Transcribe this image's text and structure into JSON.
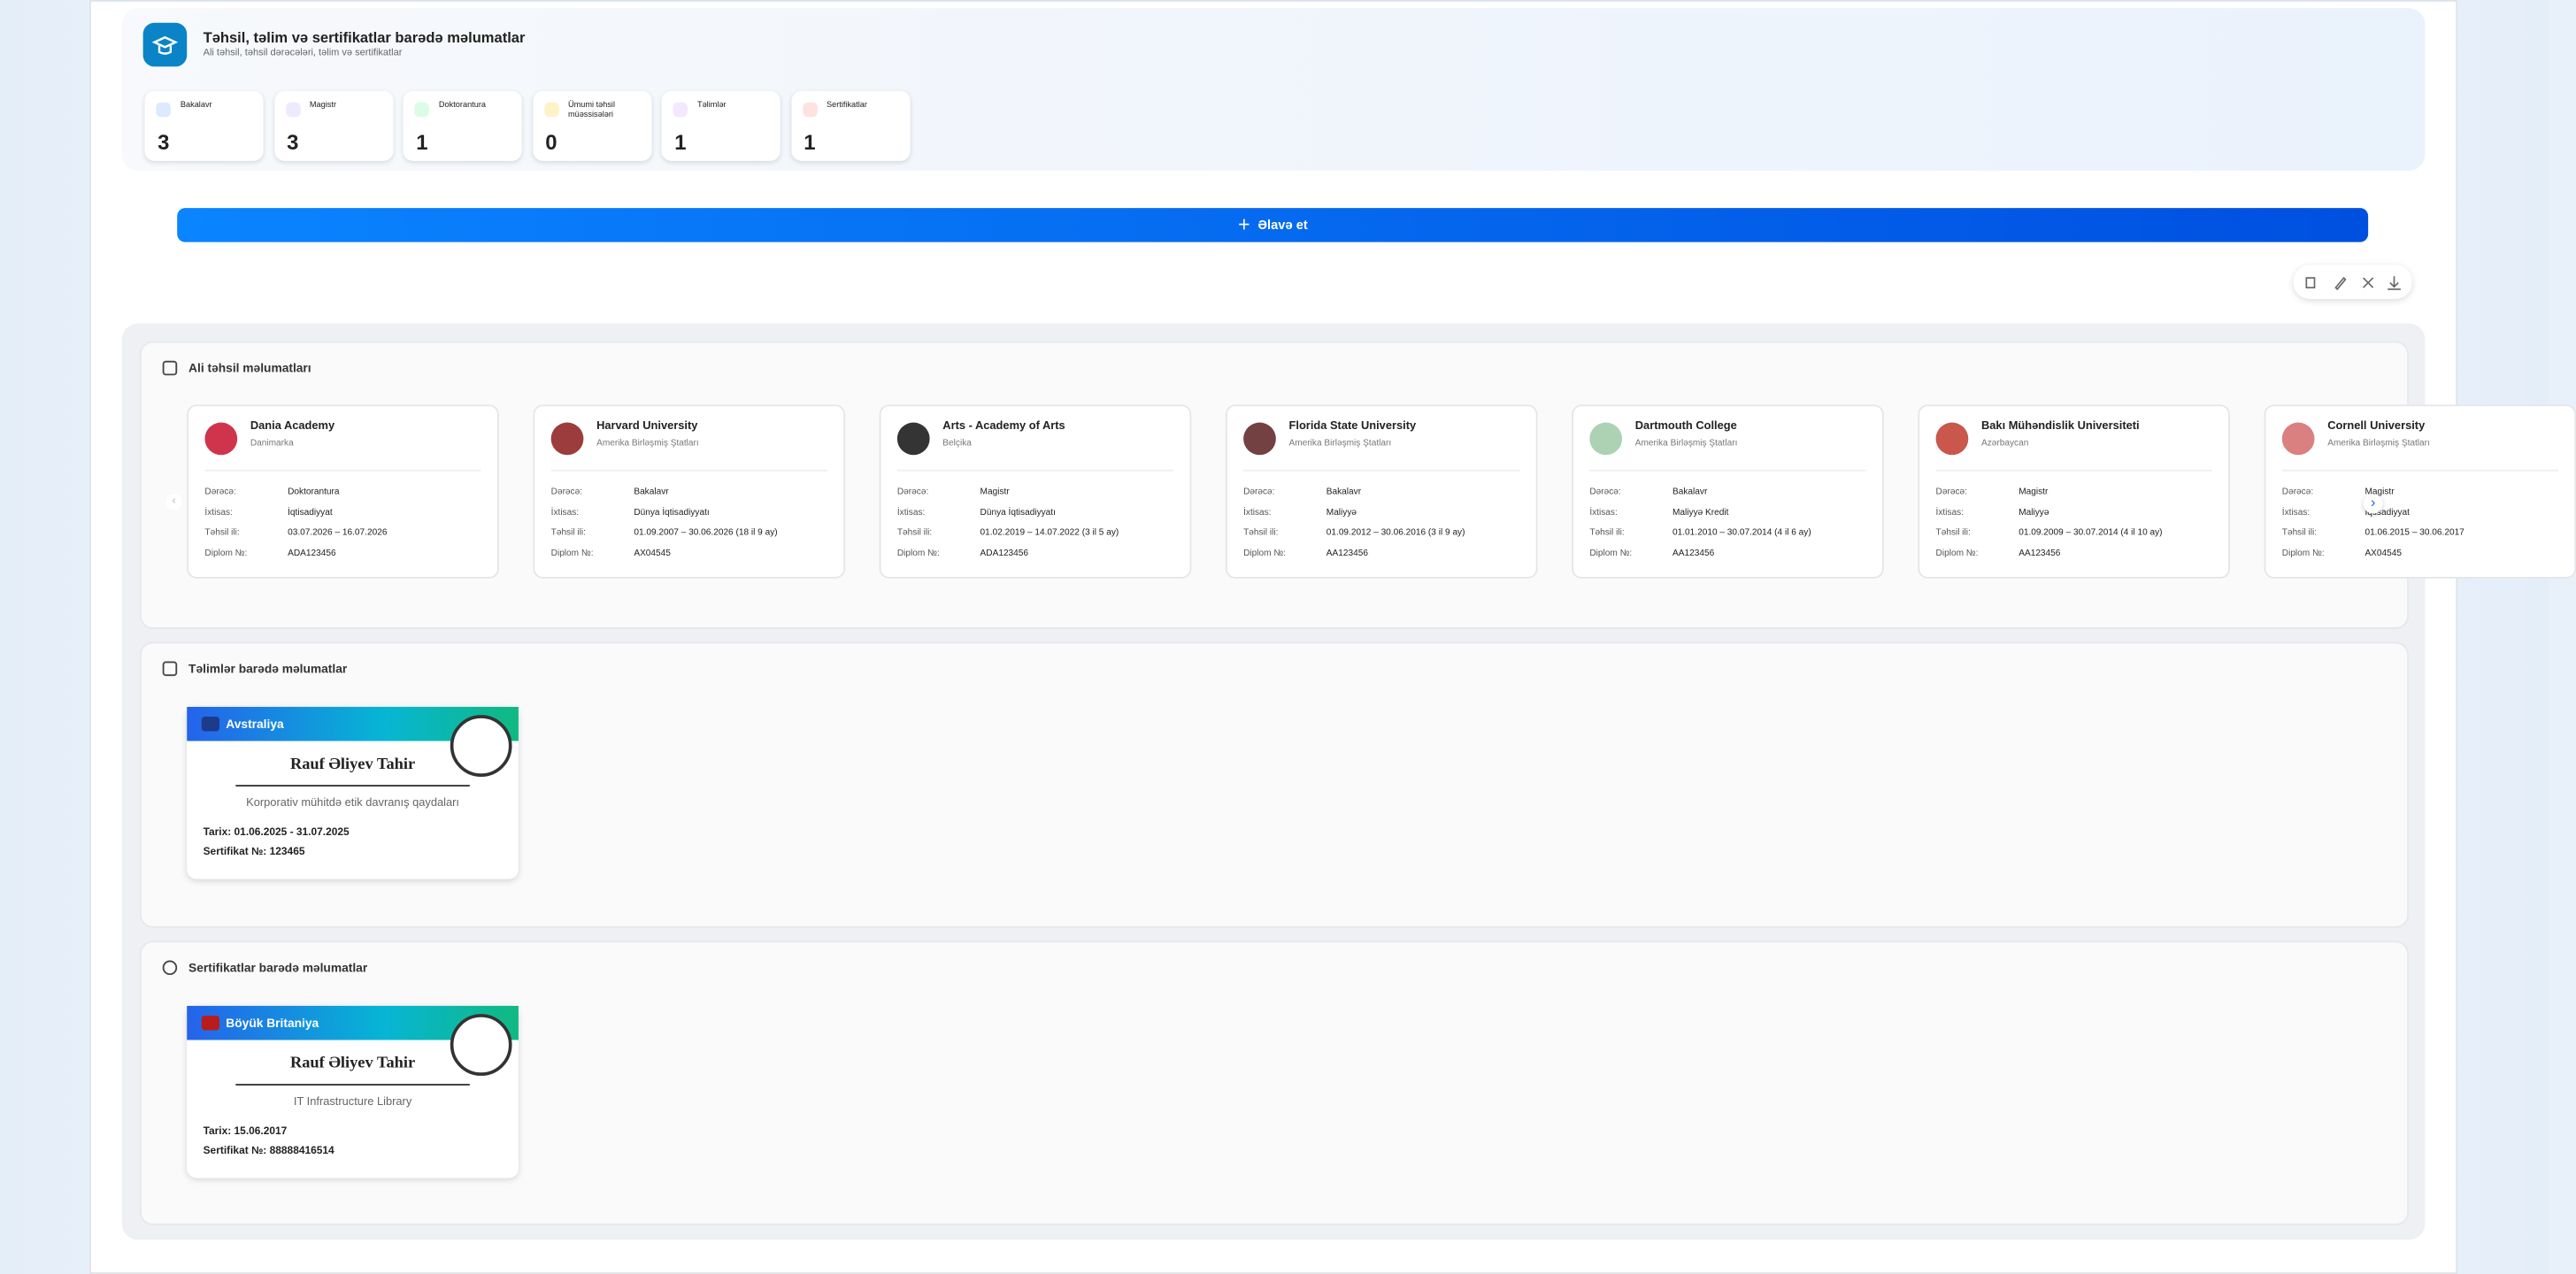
{
  "header": {
    "title": "Təhsil, təlim və sertifikatlar barədə məlumatlar",
    "subtitle": "Ali təhsil, təhsil dərəcələri, təlim və sertifikatlar"
  },
  "stats": [
    {
      "label": "Bakalavr",
      "value": 3
    },
    {
      "label": "Magistr",
      "value": 3
    },
    {
      "label": "Doktorantura",
      "value": 1
    },
    {
      "label": "Ümumi təhsil müəssisələri",
      "value": 0
    },
    {
      "label": "Təlimlər",
      "value": 1
    },
    {
      "label": "Sertifikatlar",
      "value": 1
    }
  ],
  "add_button": "Əlavə et",
  "education": {
    "title": "Ali təhsil məlumatları",
    "field_labels": [
      "Dərəcə:",
      "İxtisas:",
      "Təhsil ili:",
      "Diplom №:"
    ],
    "cards": [
      {
        "name": "Dania Academy",
        "country": "Danimarka",
        "fields": [
          "Doktorantura",
          "İqtisadiyyat",
          "03.07.2026 – 16.07.2026",
          "ADA123456"
        ]
      },
      {
        "name": "Harvard University",
        "country": "Amerika Birləşmiş Ştatları",
        "fields": [
          "Bakalavr",
          "Dünya İqtisadiyyatı",
          "01.09.2007 – 30.06.2026 (18 il 9 ay)",
          "AX04545"
        ]
      },
      {
        "name": "Arts - Academy of Arts",
        "country": "Belçika",
        "fields": [
          "Magistr",
          "Dünya İqtisadiyyatı",
          "01.02.2019 – 14.07.2022 (3 il 5 ay)",
          "ADA123456"
        ]
      },
      {
        "name": "Florida State University",
        "country": "Amerika Birləşmiş Ştatları",
        "fields": [
          "Bakalavr",
          "Maliyyə",
          "01.09.2012 – 30.06.2016 (3 il 9 ay)",
          "AA123456"
        ]
      },
      {
        "name": "Dartmouth College",
        "country": "Amerika Birləşmiş Ştatları",
        "fields": [
          "Bakalavr",
          "Maliyyə Kredit",
          "01.01.2010 – 30.07.2014 (4 il 6 ay)",
          "AA123456"
        ]
      },
      {
        "name": "Bakı Mühəndislik Universiteti",
        "country": "Azərbaycan",
        "fields": [
          "Magistr",
          "Maliyyə",
          "01.09.2009 – 30.07.2014 (4 il 10 ay)",
          "AA123456"
        ]
      },
      {
        "name": "Cornell University",
        "country": "Amerika Birləşmiş Ştatları",
        "fields": [
          "Magistr",
          "İqtisadiyyat",
          "01.06.2015 – 30.06.2017",
          "AX04545"
        ]
      }
    ]
  },
  "trainings": {
    "title": "Təlimlər barədə məlumatlar",
    "card": {
      "country": "Avstraliya",
      "person": "Rauf Əliyev Tahir",
      "course": "Korporativ mühitdə etik davranış qaydaları",
      "date_label": "Tarix:",
      "date": "01.06.2025 - 31.07.2025",
      "number_label": "Sertifikat №:",
      "number": "123465"
    }
  },
  "certificates": {
    "title": "Sertifikatlar barədə məlumatlar",
    "card": {
      "country": "Böyük Britaniya",
      "person": "Rauf Əliyev Tahir",
      "course": "IT Infrastructure Library",
      "date_label": "Tarix:",
      "date": "15.06.2017",
      "number_label": "Sertifikat №:",
      "number": "88888416514"
    }
  }
}
